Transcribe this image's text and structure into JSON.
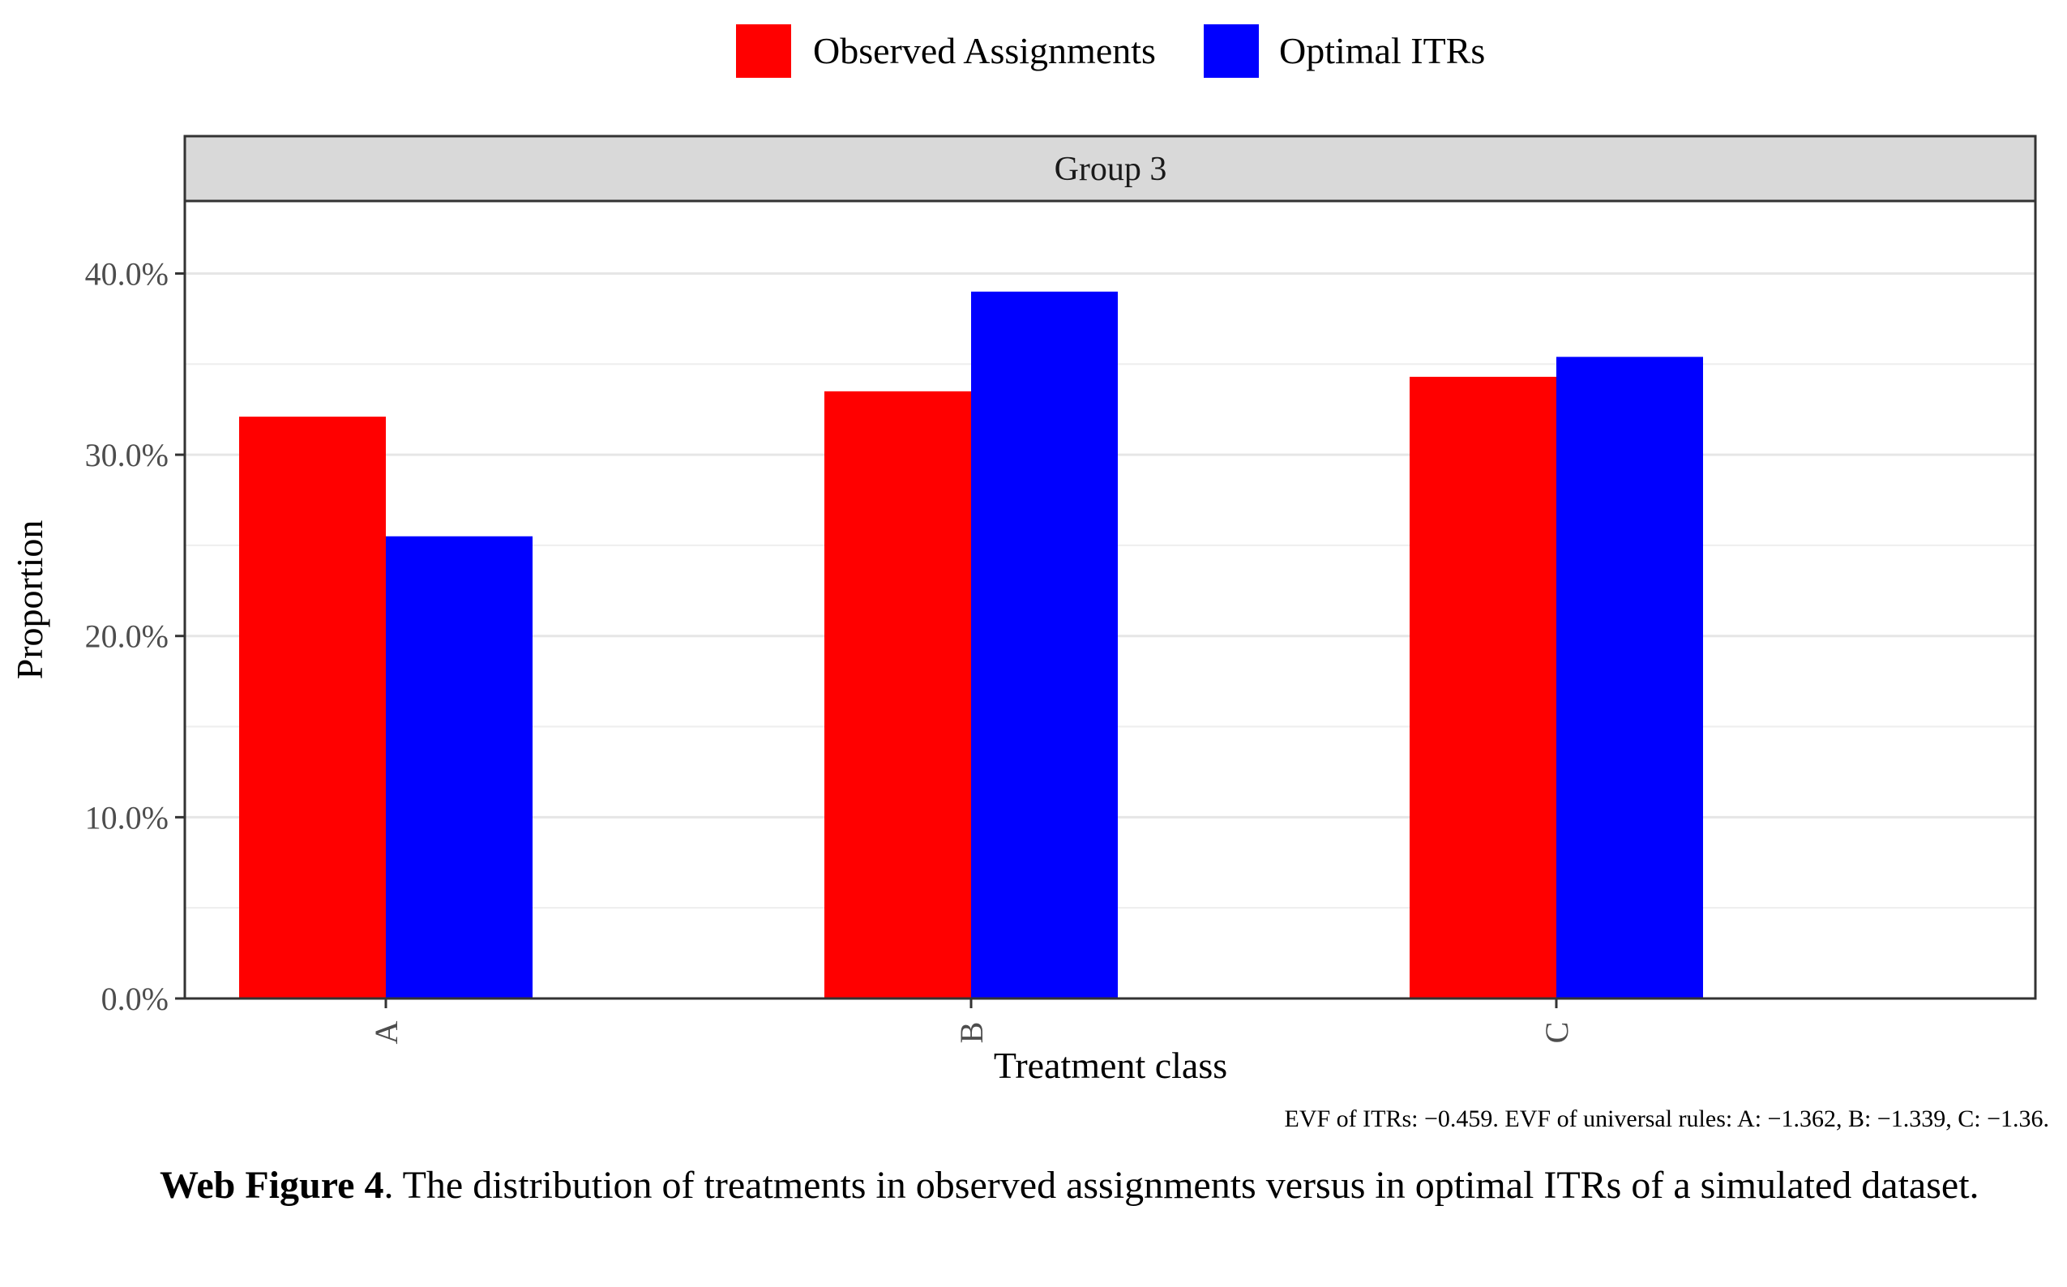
{
  "chart_data": {
    "type": "bar",
    "panel_title": "Group 3",
    "categories": [
      "A",
      "B",
      "C"
    ],
    "series": [
      {
        "name": "Observed Assignments",
        "color": "#FF0000",
        "values": [
          32.1,
          33.5,
          34.3
        ]
      },
      {
        "name": "Optimal ITRs",
        "color": "#0000FF",
        "values": [
          25.5,
          39.0,
          35.4
        ]
      }
    ],
    "xlabel": "Treatment class",
    "ylabel": "Proportion",
    "ylim": [
      0,
      44
    ],
    "yticks": [
      0,
      10,
      20,
      30,
      40
    ],
    "ytick_labels": [
      "0.0%",
      "10.0%",
      "20.0%",
      "30.0%",
      "40.0%"
    ],
    "grid": true,
    "legend_position": "top",
    "annotation": "EVF of ITRs: −0.459. EVF of universal rules: A: −1.362, B: −1.339, C: −1.36."
  },
  "caption": {
    "label": "Web Figure 4",
    "text": ". The distribution of treatments in observed assignments versus in optimal ITRs of a simulated dataset."
  }
}
